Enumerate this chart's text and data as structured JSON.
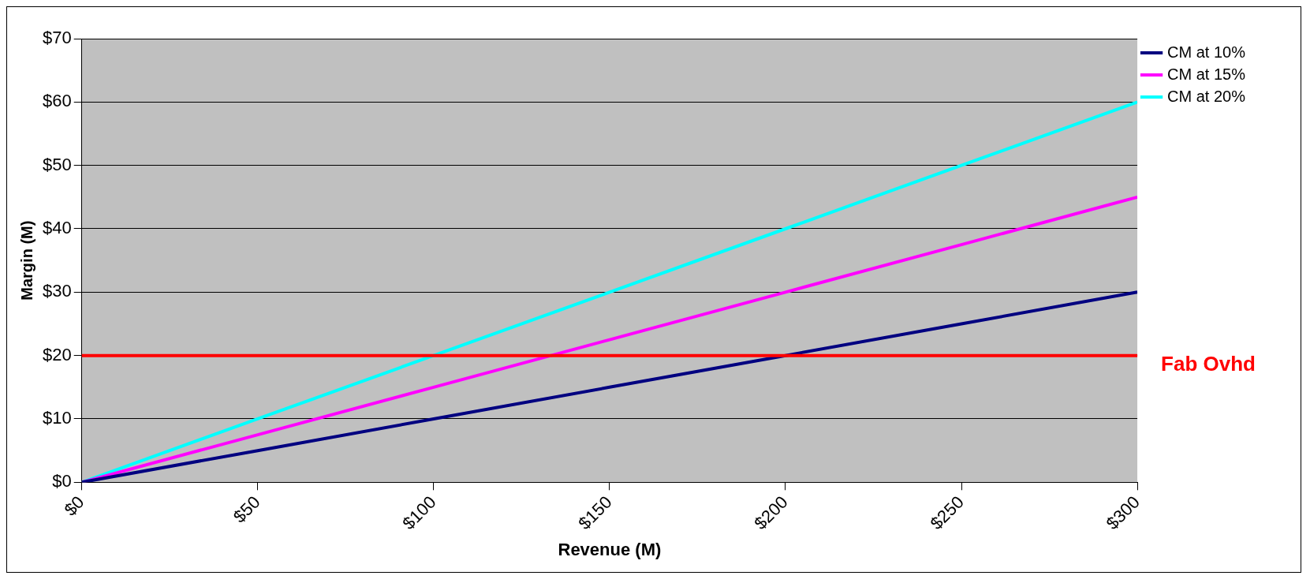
{
  "chart_data": {
    "type": "line",
    "xlabel": "Revenue (M)",
    "ylabel": "Margin (M)",
    "x": [
      0,
      50,
      100,
      150,
      200,
      250,
      300
    ],
    "series": [
      {
        "name": "CM at 10%",
        "color": "#000080",
        "values": [
          0,
          5,
          10,
          15,
          20,
          25,
          30
        ]
      },
      {
        "name": "CM at 15%",
        "color": "#ff00ff",
        "values": [
          0,
          7.5,
          15,
          22.5,
          30,
          37.5,
          45
        ]
      },
      {
        "name": "CM at 20%",
        "color": "#00ffff",
        "values": [
          0,
          10,
          20,
          30,
          40,
          50,
          60
        ]
      }
    ],
    "ref_lines": [
      {
        "axis": "y",
        "value": 20,
        "label": "Fab Ovhd",
        "color": "#ff0000"
      }
    ],
    "xlim": [
      0,
      300
    ],
    "xticks": [
      {
        "value": 0,
        "label": "$0"
      },
      {
        "value": 50,
        "label": "$50"
      },
      {
        "value": 100,
        "label": "$100"
      },
      {
        "value": 150,
        "label": "$150"
      },
      {
        "value": 200,
        "label": "$200"
      },
      {
        "value": 250,
        "label": "$250"
      },
      {
        "value": 300,
        "label": "$300"
      }
    ],
    "ylim": [
      0,
      70
    ],
    "yticks": [
      {
        "value": 0,
        "label": "$0"
      },
      {
        "value": 10,
        "label": "$10"
      },
      {
        "value": 20,
        "label": "$20"
      },
      {
        "value": 30,
        "label": "$30"
      },
      {
        "value": 40,
        "label": "$40"
      },
      {
        "value": 50,
        "label": "$50"
      },
      {
        "value": 60,
        "label": "$60"
      },
      {
        "value": 70,
        "label": "$70"
      }
    ],
    "grid": "y",
    "legend": "top right",
    "marker": "none",
    "line_style": "solid"
  }
}
